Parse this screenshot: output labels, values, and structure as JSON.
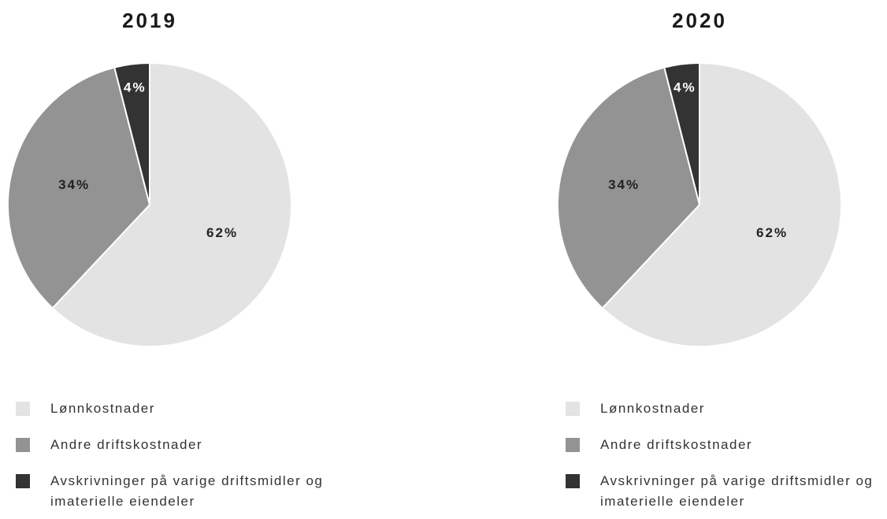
{
  "chart_data": [
    {
      "type": "pie",
      "title": "2019",
      "categories": [
        "Lønnkostnader",
        "Andre driftskostnader",
        "Avskrivninger på varige driftsmidler og imaterielle eiendeler"
      ],
      "values": [
        62,
        34,
        4
      ],
      "value_labels": [
        "62%",
        "34%",
        "4%"
      ],
      "colors": [
        "#e3e3e4",
        "#939393",
        "#333333"
      ]
    },
    {
      "type": "pie",
      "title": "2020",
      "categories": [
        "Lønnkostnader",
        "Andre driftskostnader",
        "Avskrivninger på varige driftsmidler og imaterielle eiendeler"
      ],
      "values": [
        62,
        34,
        4
      ],
      "value_labels": [
        "62%",
        "34%",
        "4%"
      ],
      "colors": [
        "#e3e3e4",
        "#939393",
        "#333333"
      ]
    }
  ]
}
